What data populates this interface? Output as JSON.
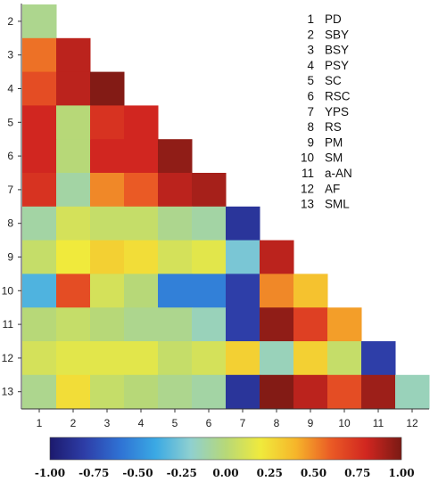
{
  "chart_data": {
    "type": "heatmap",
    "title": "",
    "xlabel": "",
    "ylabel": "",
    "x_ticks": [
      "1",
      "2",
      "3",
      "4",
      "5",
      "6",
      "7",
      "8",
      "9",
      "10",
      "11",
      "12"
    ],
    "y_ticks": [
      "2",
      "3",
      "4",
      "5",
      "6",
      "7",
      "8",
      "9",
      "10",
      "11",
      "12",
      "13"
    ],
    "variables": [
      {
        "num": "1",
        "name": "PD"
      },
      {
        "num": "2",
        "name": "SBY"
      },
      {
        "num": "3",
        "name": "BSY"
      },
      {
        "num": "4",
        "name": "PSY"
      },
      {
        "num": "5",
        "name": "SC"
      },
      {
        "num": "6",
        "name": "RSC"
      },
      {
        "num": "7",
        "name": "YPS"
      },
      {
        "num": "8",
        "name": "RS"
      },
      {
        "num": "9",
        "name": "PM"
      },
      {
        "num": "10",
        "name": "SM"
      },
      {
        "num": "11",
        "name": "a-AN"
      },
      {
        "num": "12",
        "name": "AF"
      },
      {
        "num": "13",
        "name": "SML"
      }
    ],
    "matrix": [
      [
        -0.05
      ],
      [
        0.55,
        0.85
      ],
      [
        0.65,
        0.85,
        0.98
      ],
      [
        0.8,
        0.0,
        0.75,
        0.8
      ],
      [
        0.8,
        0.0,
        0.8,
        0.8,
        0.95
      ],
      [
        0.75,
        -0.1,
        0.5,
        0.6,
        0.85,
        0.9
      ],
      [
        -0.1,
        0.1,
        0.05,
        0.05,
        -0.05,
        -0.1,
        -0.85
      ],
      [
        0.05,
        0.2,
        0.3,
        0.25,
        0.1,
        0.15,
        -0.25,
        0.85
      ],
      [
        -0.35,
        0.65,
        0.1,
        0.0,
        -0.55,
        -0.55,
        -0.8,
        0.5,
        0.35
      ],
      [
        0.0,
        0.05,
        0.0,
        -0.05,
        -0.05,
        -0.15,
        -0.8,
        0.95,
        0.7,
        0.45
      ],
      [
        0.1,
        0.15,
        0.15,
        0.15,
        0.05,
        0.1,
        0.3,
        -0.15,
        0.3,
        0.05,
        -0.8
      ],
      [
        -0.05,
        0.25,
        0.05,
        0.0,
        -0.05,
        -0.1,
        -0.85,
        0.98,
        0.85,
        0.65,
        0.92,
        -0.15
      ]
    ],
    "colorbar": {
      "min": -1.0,
      "max": 1.0,
      "ticks": [
        "-1.00",
        "-0.75",
        "-0.50",
        "-0.25",
        "0.00",
        "0.25",
        "0.50",
        "0.75",
        "1.00"
      ],
      "colors": [
        "#1c1a6e",
        "#2e3ea8",
        "#2f72d4",
        "#3aa9e4",
        "#8fd0d0",
        "#b7d878",
        "#f0ea3c",
        "#f6b52a",
        "#ea5a25",
        "#d12620",
        "#7a1a14"
      ]
    },
    "legend_position": "top-right",
    "grid": false
  }
}
